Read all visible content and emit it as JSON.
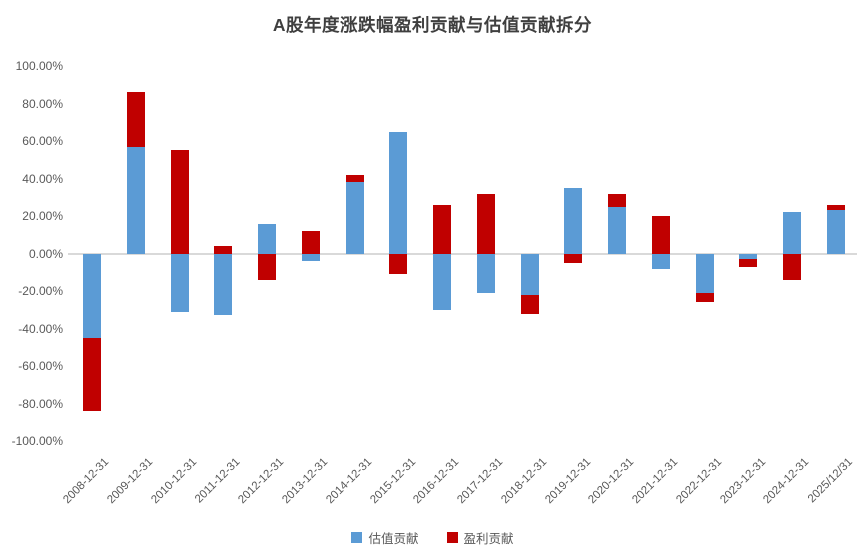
{
  "chart_data": {
    "type": "bar",
    "stacked": true,
    "title": "A股年度涨跌幅盈利贡献与估值贡献拆分",
    "categories": [
      "2008-12-31",
      "2009-12-31",
      "2010-12-31",
      "2011-12-31",
      "2012-12-31",
      "2013-12-31",
      "2014-12-31",
      "2015-12-31",
      "2016-12-31",
      "2017-12-31",
      "2018-12-31",
      "2019-12-31",
      "2020-12-31",
      "2021-12-31",
      "2022-12-31",
      "2023-12-31",
      "2024-12-31",
      "2025/12/31"
    ],
    "series": [
      {
        "name": "估值贡献",
        "key": "valuation-contribution",
        "color": "#5B9BD5",
        "values": [
          -45,
          57,
          -31,
          -33,
          16,
          -4,
          38,
          65,
          -30,
          -21,
          -22,
          35,
          25,
          -8,
          -21,
          -3,
          22,
          23
        ]
      },
      {
        "name": "盈利贡献",
        "key": "earnings-contribution",
        "color": "#C00000",
        "values": [
          -39,
          29,
          55,
          4,
          -14,
          12,
          4,
          -11,
          26,
          32,
          -10,
          -5,
          7,
          20,
          -5,
          -4,
          -14,
          3
        ]
      }
    ],
    "y_ticks": [
      "100.00%",
      "80.00%",
      "60.00%",
      "40.00%",
      "20.00%",
      "0.00%",
      "-20.00%",
      "-40.00%",
      "-60.00%",
      "-80.00%",
      "-100.00%"
    ],
    "ylim": [
      -100,
      100
    ],
    "grid": false,
    "legend_position": "bottom",
    "title_color": "#3f3f3f",
    "axis_text_color": "#595959",
    "zero_line_color": "#d9d9d9",
    "background_color": "#ffffff"
  }
}
